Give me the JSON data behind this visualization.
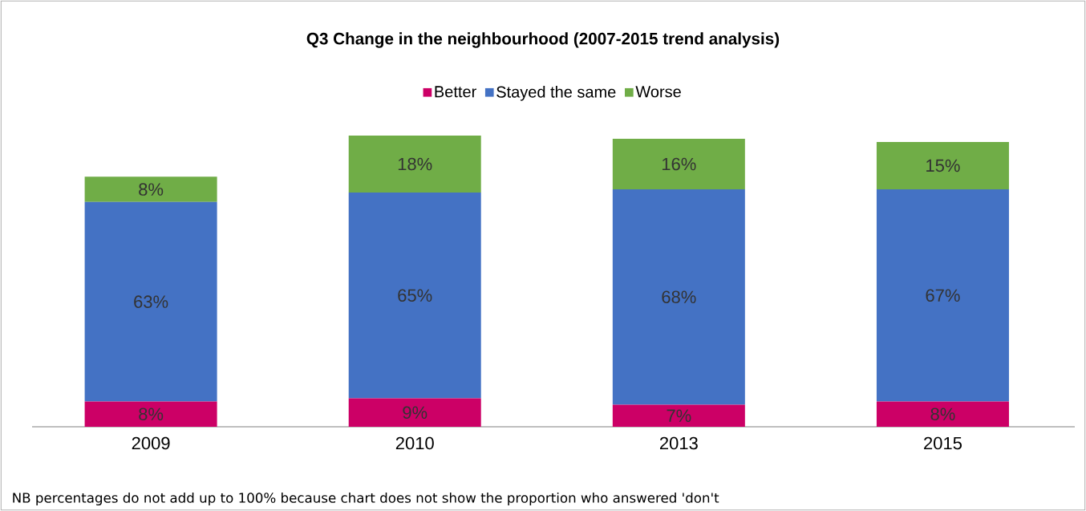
{
  "chart_data": {
    "type": "bar",
    "title": "Q3 Change in the neighbourhood (2007-2015 trend analysis)",
    "categories": [
      "2009",
      "2010",
      "2013",
      "2015"
    ],
    "stacked": true,
    "legend": "top",
    "series": [
      {
        "name": "Better",
        "color": "#cc0066",
        "values": [
          8,
          9,
          7,
          8
        ],
        "value_labels": [
          "8%",
          "9%",
          "7%",
          "8%"
        ]
      },
      {
        "name": "Stayed the same",
        "color": "#4472c4",
        "values": [
          63,
          65,
          68,
          67
        ],
        "value_labels": [
          "63%",
          "65%",
          "68%",
          "67%"
        ]
      },
      {
        "name": "Worse",
        "color": "#70ad47",
        "values": [
          8,
          18,
          16,
          15
        ],
        "value_labels": [
          "8%",
          "18%",
          "16%",
          "15%"
        ]
      }
    ],
    "annotations": [
      "NB percentages do not add up to 100% because chart does not show the proportion who answered 'don't"
    ]
  }
}
